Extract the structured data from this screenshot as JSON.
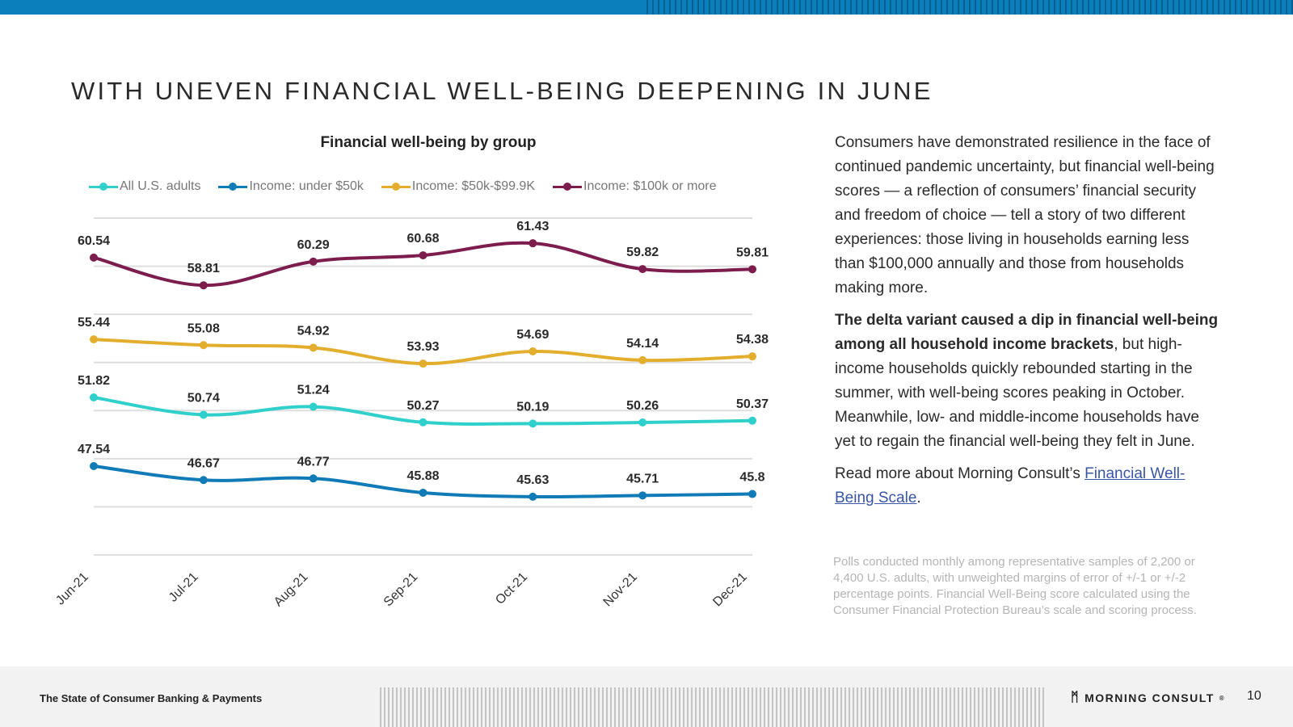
{
  "page": {
    "title": "WITH UNEVEN FINANCIAL WELL-BEING DEEPENING IN JUNE",
    "number": "10"
  },
  "chart_data": {
    "type": "line",
    "title": "Financial well-being by group",
    "xlabel": "",
    "ylabel": "",
    "grid": true,
    "legend_position": "top",
    "ylim": [
      42,
      63
    ],
    "categories": [
      "Jun-21",
      "Jul-21",
      "Aug-21",
      "Sep-21",
      "Oct-21",
      "Nov-21",
      "Dec-21"
    ],
    "series": [
      {
        "name": "All U.S. adults",
        "color": "#2fd0cc",
        "values": [
          51.82,
          50.74,
          51.24,
          50.27,
          50.19,
          50.26,
          50.37
        ]
      },
      {
        "name": "Income: under $50k",
        "color": "#117bb8",
        "values": [
          47.54,
          46.67,
          46.77,
          45.88,
          45.63,
          45.71,
          45.8
        ]
      },
      {
        "name": "Income: $50k-$99.9K",
        "color": "#e3ae2d",
        "values": [
          55.44,
          55.08,
          54.92,
          53.93,
          54.69,
          54.14,
          54.38
        ]
      },
      {
        "name": "Income: $100k or more",
        "color": "#7c1d4e",
        "values": [
          60.54,
          58.81,
          60.29,
          60.68,
          61.43,
          59.82,
          59.81
        ]
      }
    ],
    "labels": [
      [
        "51.82",
        "50.74",
        "51.24",
        "50.27",
        "50.19",
        "50.26",
        "50.37"
      ],
      [
        "47.54",
        "46.67",
        "46.77",
        "45.88",
        "45.63",
        "45.71",
        "45.8"
      ],
      [
        "55.44",
        "55.08",
        "54.92",
        "53.93",
        "54.69",
        "54.14",
        "54.38"
      ],
      [
        "60.54",
        "58.81",
        "60.29",
        "60.68",
        "61.43",
        "59.82",
        "59.81"
      ]
    ]
  },
  "text": {
    "p1": "Consumers have demonstrated resilience in the face of continued pandemic uncertainty, but financial well-being scores — a reflection of consumers’ financial security and freedom of choice — tell a story of two different experiences: those living in households earning less than $100,000 annually and those from households making more.",
    "p2_bold": "The delta variant caused a dip in financial well-being among all household income brackets",
    "p2_rest": ", but high-income households quickly rebounded starting in the summer, with well-being scores peaking in October. Meanwhile, low- and middle-income households have yet to regain the financial well-being they felt in June.",
    "p3_prefix": "Read more about Morning Consult’s ",
    "p3_link": "Financial Well-Being Scale",
    "p3_suffix": ".",
    "footnote": "Polls conducted monthly among representative samples of 2,200 or 4,400 U.S. adults, with unweighted margins of error of +/-1 or +/-2 percentage points. Financial Well-Being score calculated using the Consumer Financial Protection Bureau’s scale and scoring process."
  },
  "footer": {
    "report_title": "The State of Consumer Banking & Payments",
    "brand": "MORNING CONSULT",
    "brand_mark": "ᛗ",
    "trademark": "®"
  }
}
